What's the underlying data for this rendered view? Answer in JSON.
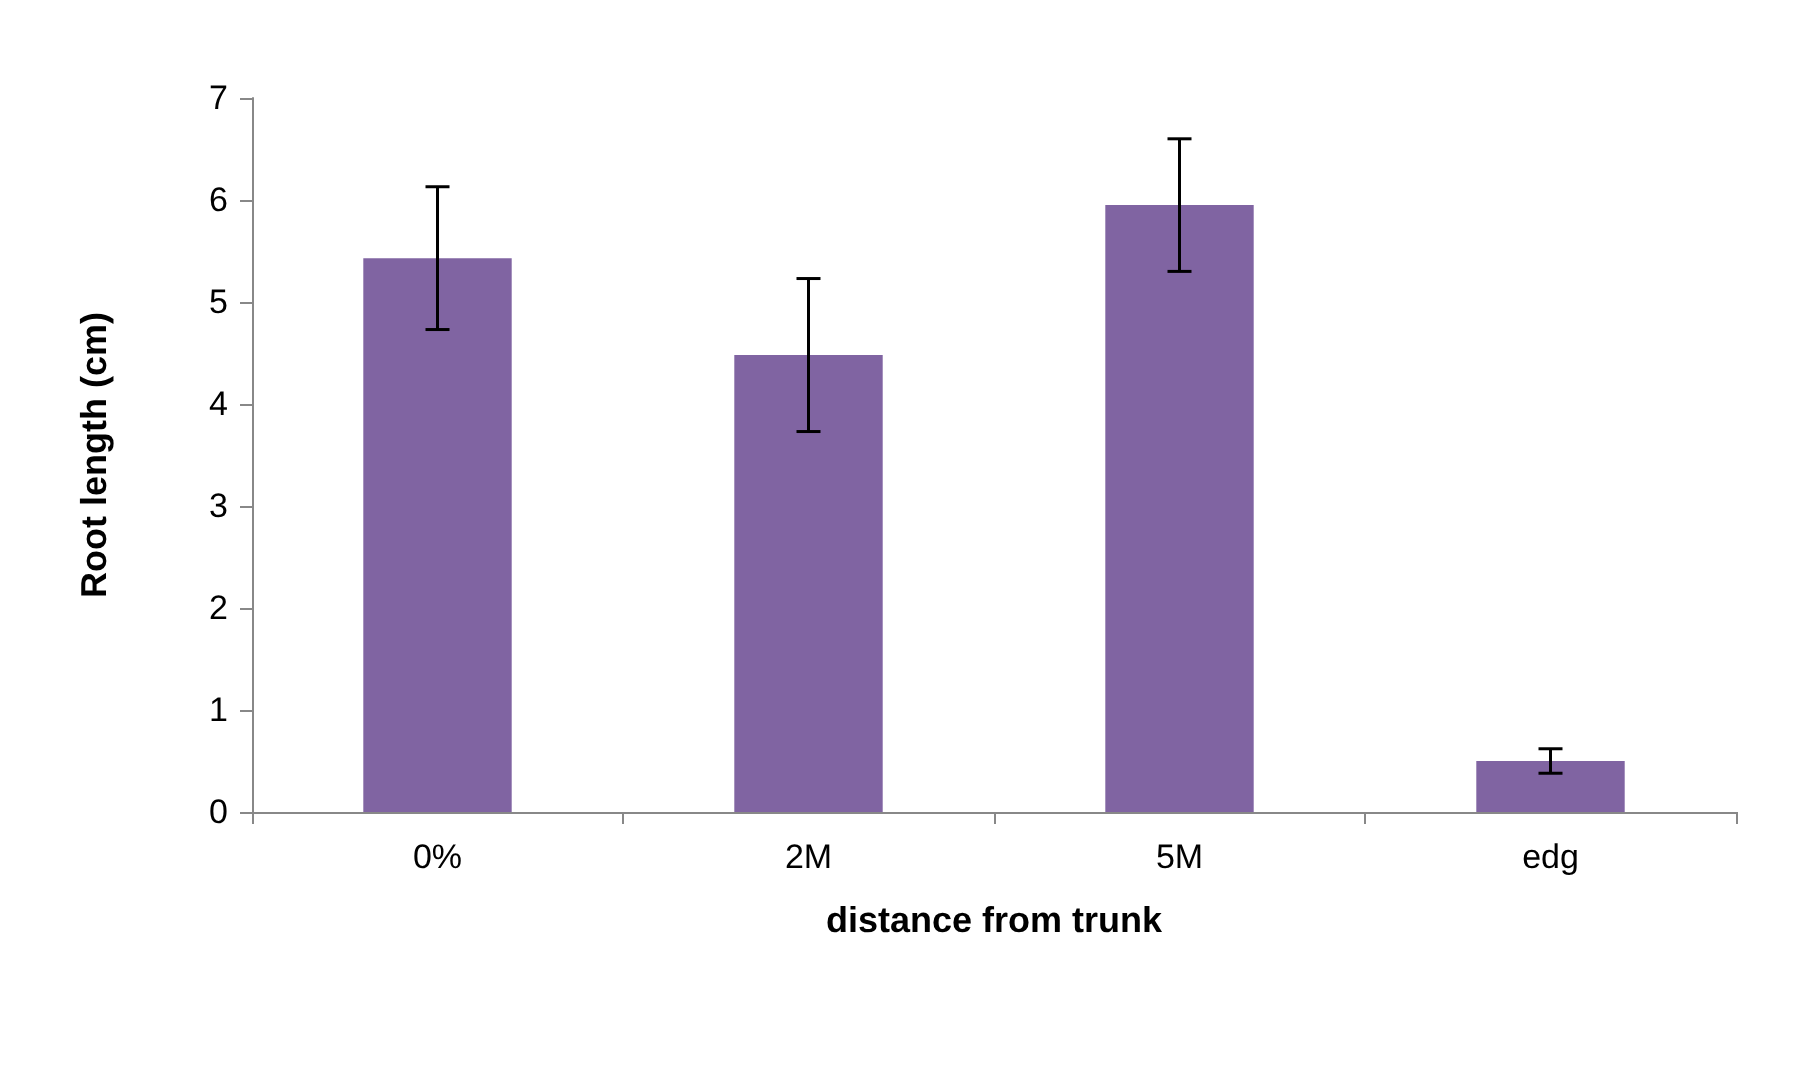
{
  "chart_data": {
    "type": "bar",
    "xlabel": "distance from trunk",
    "ylabel": "Root length (cm)",
    "categories": [
      "0%",
      "2M",
      "5M",
      "edg"
    ],
    "values": [
      5.43,
      4.48,
      5.95,
      0.5
    ],
    "errors": [
      0.7,
      0.75,
      0.65,
      0.12
    ],
    "color": "#8064a2",
    "ylim": [
      0,
      7
    ],
    "yticks": [
      0,
      1,
      2,
      3,
      4,
      5,
      6,
      7
    ],
    "grid": false
  }
}
